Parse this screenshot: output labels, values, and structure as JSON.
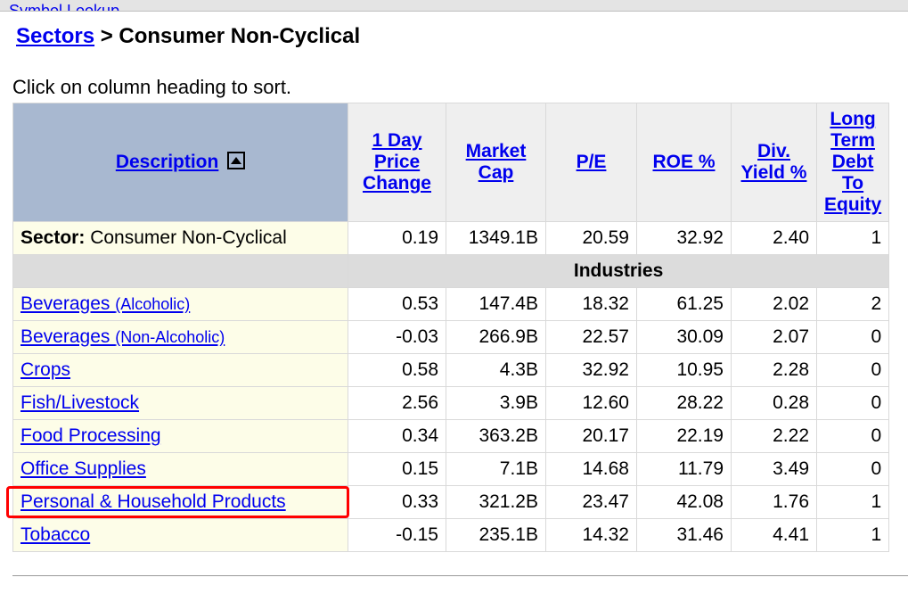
{
  "topbar": {
    "symbol_lookup": "Symbol Lookup"
  },
  "breadcrumb": {
    "link": "Sectors",
    "sep": ">",
    "current": "Consumer Non-Cyclical"
  },
  "hint": "Click on column heading to sort.",
  "columns": {
    "description": "Description",
    "price_change": "1 Day Price Change",
    "market_cap": "Market Cap",
    "pe": "P/E",
    "roe": "ROE %",
    "div_yield": "Div. Yield %",
    "debt_equity": "Long Term Debt To Equity"
  },
  "col_widths": {
    "description": 376,
    "price_change": 110,
    "market_cap": 112,
    "pe": 102,
    "roe": 106,
    "div_yield": 96,
    "debt_equity": 70
  },
  "sector_row": {
    "label": "Sector:",
    "name": "Consumer Non-Cyclical",
    "values": [
      "0.19",
      "1349.1B",
      "20.59",
      "32.92",
      "2.40",
      "1"
    ]
  },
  "industries_label": "Industries",
  "highlight_row_index": 6,
  "rows": [
    {
      "name": "Beverages",
      "sub": "(Alcoholic)",
      "values": [
        "0.53",
        "147.4B",
        "18.32",
        "61.25",
        "2.02",
        "2"
      ]
    },
    {
      "name": "Beverages",
      "sub": "(Non-Alcoholic)",
      "values": [
        "-0.03",
        "266.9B",
        "22.57",
        "30.09",
        "2.07",
        "0"
      ]
    },
    {
      "name": "Crops",
      "values": [
        "0.58",
        "4.3B",
        "32.92",
        "10.95",
        "2.28",
        "0"
      ]
    },
    {
      "name": "Fish/Livestock",
      "values": [
        "2.56",
        "3.9B",
        "12.60",
        "28.22",
        "0.28",
        "0"
      ]
    },
    {
      "name": "Food Processing",
      "values": [
        "0.34",
        "363.2B",
        "20.17",
        "22.19",
        "2.22",
        "0"
      ]
    },
    {
      "name": "Office Supplies",
      "values": [
        "0.15",
        "7.1B",
        "14.68",
        "11.79",
        "3.49",
        "0"
      ]
    },
    {
      "name": "Personal & Household Products",
      "values": [
        "0.33",
        "321.2B",
        "23.47",
        "42.08",
        "1.76",
        "1"
      ]
    },
    {
      "name": "Tobacco",
      "values": [
        "-0.15",
        "235.1B",
        "14.32",
        "31.46",
        "4.41",
        "1"
      ]
    }
  ],
  "colors": {
    "link": "#0000ee",
    "header_desc_bg": "#a8b8d0",
    "header_other_bg": "#efefef",
    "desc_cell_bg": "#fdfde8",
    "border": "#d9d9d9",
    "industries_bg": "#dcdcdc",
    "highlight": "#ff0000"
  }
}
